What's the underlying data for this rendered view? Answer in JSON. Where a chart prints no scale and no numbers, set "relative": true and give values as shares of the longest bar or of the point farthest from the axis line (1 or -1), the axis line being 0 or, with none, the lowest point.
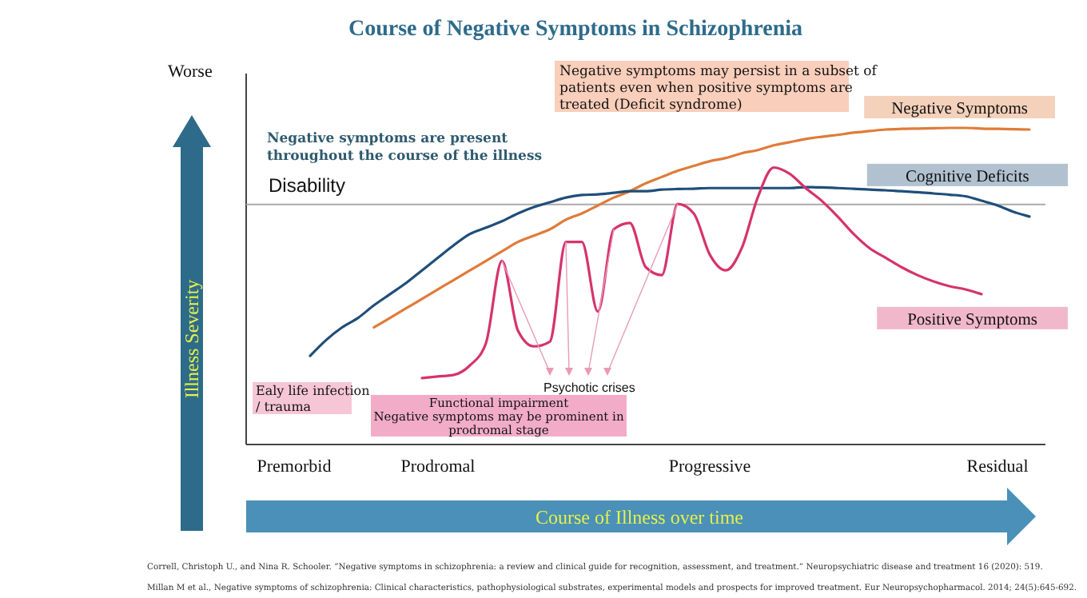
{
  "chart_data": {
    "type": "line",
    "title": "Course of Negative Symptoms in Schizophrenia",
    "xlabel": "Course of Illness over time",
    "ylabel": "Illness Severity",
    "relative": true,
    "line_style": "solid",
    "categories": [
      null,
      null,
      null,
      "Premorbid",
      null,
      null,
      null,
      null,
      null,
      null,
      null,
      null,
      "Prodromal",
      null,
      null,
      null,
      null,
      null,
      null,
      null,
      null,
      null,
      null,
      null,
      null,
      null,
      null,
      null,
      null,
      "Progressive",
      null,
      null,
      null,
      null,
      null,
      null,
      null,
      null,
      null,
      null,
      null,
      null,
      null,
      null,
      null,
      null,
      null,
      "Residual",
      null,
      null,
      null
    ],
    "ref_lines": [
      {
        "axis": "y",
        "value": 0.758,
        "label": "Disability",
        "color": "#aaaaaa"
      }
    ],
    "series": [
      {
        "name": "Negative Symptoms",
        "color": "#e07b39",
        "values": [
          null,
          null,
          null,
          null,
          null,
          null,
          null,
          null,
          0.37,
          0.4,
          0.43,
          0.46,
          0.49,
          0.52,
          0.55,
          0.58,
          0.61,
          0.64,
          0.66,
          0.68,
          0.71,
          0.73,
          0.755,
          0.78,
          0.8,
          0.825,
          0.845,
          0.865,
          0.88,
          0.895,
          0.905,
          0.92,
          0.93,
          0.945,
          0.955,
          0.965,
          0.972,
          0.978,
          0.985,
          0.99,
          0.995,
          0.997,
          0.998,
          0.999,
          1.0,
          1.0,
          0.998,
          0.997,
          0.996,
          0.995,
          null
        ]
      },
      {
        "name": "Cognitive Deficits",
        "color": "#1f4e79",
        "values": [
          null,
          null,
          null,
          null,
          0.28,
          0.33,
          0.37,
          0.4,
          0.44,
          0.475,
          0.51,
          0.55,
          0.59,
          0.63,
          0.665,
          0.685,
          0.705,
          0.73,
          0.75,
          0.765,
          0.78,
          0.788,
          0.79,
          0.795,
          0.8,
          0.8,
          0.805,
          0.807,
          0.808,
          0.81,
          0.81,
          0.81,
          0.81,
          0.81,
          0.81,
          0.813,
          0.812,
          0.81,
          0.808,
          0.805,
          0.803,
          0.8,
          0.797,
          0.793,
          0.789,
          0.784,
          0.77,
          0.755,
          0.735,
          0.72,
          null
        ]
      },
      {
        "name": "Positive Symptoms",
        "color": "#d6336c",
        "values": [
          null,
          null,
          null,
          null,
          null,
          null,
          null,
          null,
          null,
          null,
          null,
          0.21,
          0.215,
          0.22,
          0.25,
          0.32,
          0.58,
          0.36,
          0.31,
          0.325,
          0.64,
          0.64,
          0.42,
          0.68,
          0.7,
          0.56,
          0.535,
          0.76,
          0.73,
          0.6,
          0.55,
          0.62,
          0.78,
          0.875,
          0.855,
          0.81,
          0.77,
          0.72,
          0.665,
          0.62,
          0.59,
          0.56,
          0.535,
          0.515,
          0.5,
          0.49,
          0.475,
          null,
          null,
          null,
          null
        ]
      }
    ],
    "annotations": [
      "Worse",
      "Negative symptoms are present throughout the course of the illness",
      "Negative symptoms may persist in a subset of patients even when positive symptoms are treated (Deficit syndrome)",
      "Ealy life infection / trauma",
      "Functional impairment\nNegative symptoms may be prominent in prodromal stage",
      "Psychotic crises",
      "Correll, Christoph U., and Nina R. Schooler. “Negative symptoms in schizophrenia: a review and clinical guide for recognition, assessment, and treatment.” Neuropsychiatric disease and treatment 16 (2020): 519.",
      "Millan M et al., Negative symptoms of schizophrenia: Clinical characteristics, pathophysiological substrates, experimental models and prospects for improved treatment. Eur Neuropsychopharmacol. 2014; 24(5):645-692."
    ]
  }
}
